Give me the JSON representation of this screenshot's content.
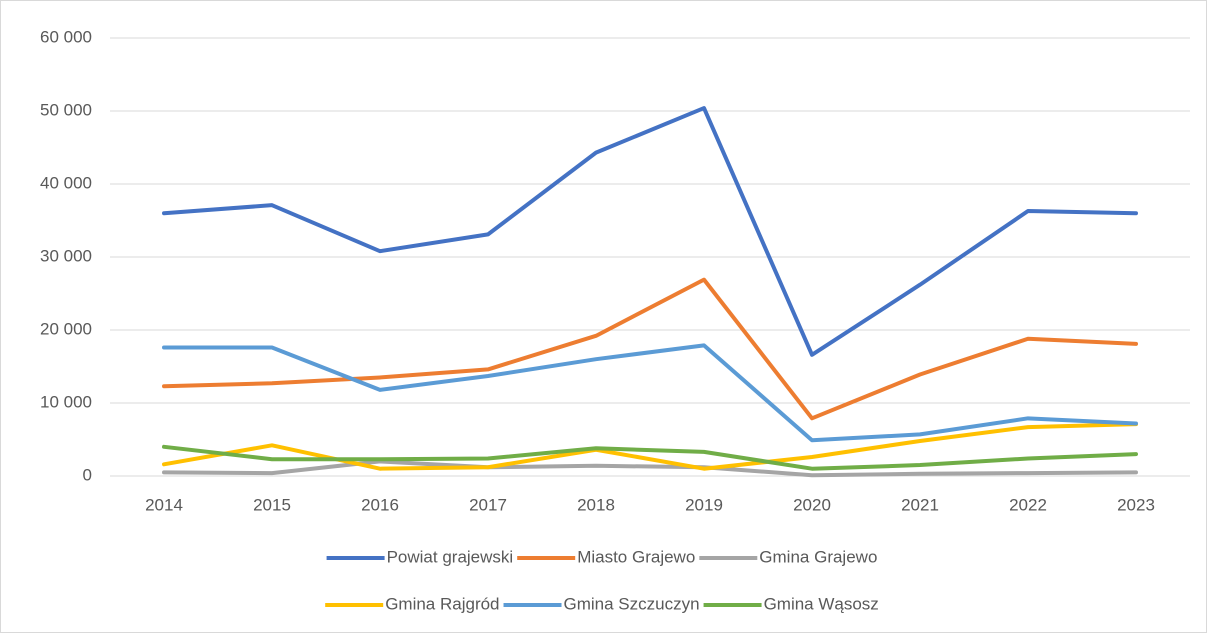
{
  "chart_data": {
    "type": "line",
    "categories": [
      "2014",
      "2015",
      "2016",
      "2017",
      "2018",
      "2019",
      "2020",
      "2021",
      "2022",
      "2023"
    ],
    "series": [
      {
        "name": "Powiat grajewski",
        "color": "#4472c4",
        "values": [
          36000,
          37100,
          30800,
          33100,
          44300,
          50400,
          16600,
          26200,
          36300,
          36000
        ]
      },
      {
        "name": "Miasto Grajewo",
        "color": "#ed7d31",
        "values": [
          12300,
          12700,
          13500,
          14600,
          19200,
          26900,
          7900,
          13900,
          18800,
          18100
        ]
      },
      {
        "name": "Gmina Grajewo",
        "color": "#a5a5a5",
        "values": [
          500,
          400,
          2000,
          1200,
          1400,
          1200,
          100,
          300,
          400,
          500
        ]
      },
      {
        "name": "Gmina Rajgród",
        "color": "#ffc000",
        "values": [
          1600,
          4200,
          1000,
          1200,
          3600,
          1000,
          2600,
          4800,
          6700,
          7100
        ]
      },
      {
        "name": "Gmina Szczuczyn",
        "color": "#5b9bd5",
        "values": [
          17600,
          17600,
          11800,
          13700,
          16000,
          17900,
          4900,
          5700,
          7900,
          7200
        ]
      },
      {
        "name": "Gmina Wąsosz",
        "color": "#70ad47",
        "values": [
          4000,
          2300,
          2300,
          2400,
          3800,
          3300,
          1000,
          1500,
          2400,
          3000
        ]
      }
    ],
    "ylim": [
      0,
      60000
    ],
    "yticks": [
      0,
      {
        "value": 10000,
        "label": "10 000"
      },
      {
        "value": 20000,
        "label": "20 000"
      },
      {
        "value": 30000,
        "label": "30 000"
      },
      {
        "value": 40000,
        "label": "40 000"
      },
      {
        "value": 50000,
        "label": "50 000"
      },
      {
        "value": 60000,
        "label": "60 000"
      }
    ],
    "grid": true,
    "legend": "bottom"
  }
}
